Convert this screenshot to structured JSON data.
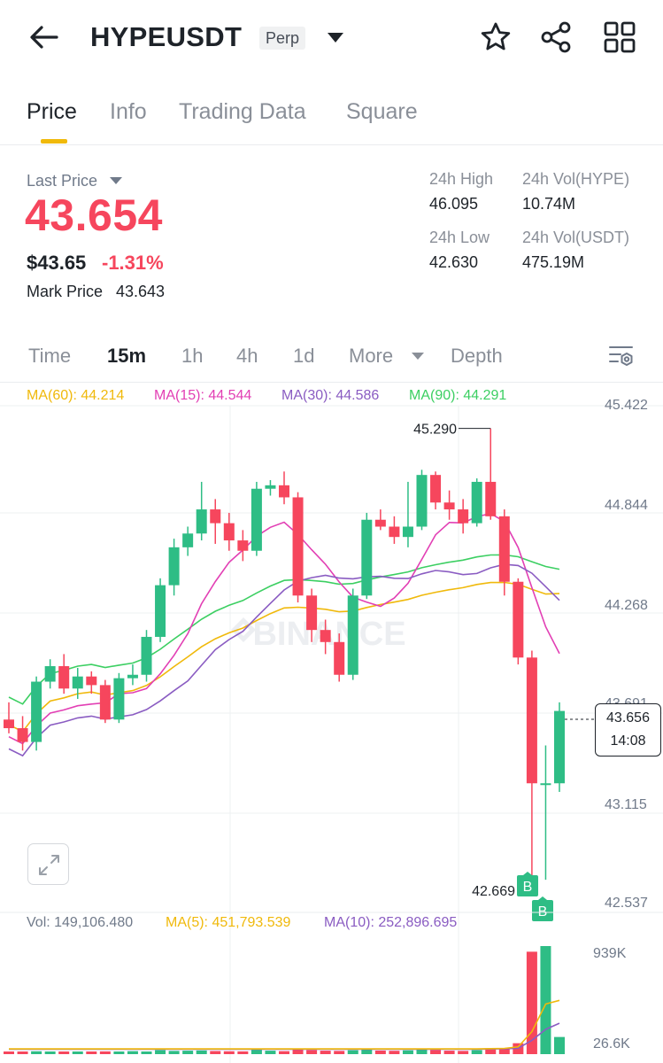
{
  "header": {
    "symbol": "HYPEUSDT",
    "contract_type": "Perp",
    "icons": [
      "back-arrow-icon",
      "star-icon",
      "share-icon",
      "grid-icon"
    ]
  },
  "tabs": [
    {
      "label": "Price",
      "active": true
    },
    {
      "label": "Info",
      "active": false
    },
    {
      "label": "Trading Data",
      "active": false
    },
    {
      "label": "Square",
      "active": false
    }
  ],
  "price": {
    "last_price_label": "Last Price",
    "last_price": "43.654",
    "usd_price": "$43.65",
    "change": "-1.31%",
    "mark_label": "Mark Price",
    "mark_price": "43.643"
  },
  "stats": {
    "high_label": "24h High",
    "high": "46.095",
    "low_label": "24h Low",
    "low": "42.630",
    "vol_base_label": "24h Vol(HYPE)",
    "vol_base": "10.74M",
    "vol_quote_label": "24h Vol(USDT)",
    "vol_quote": "475.19M"
  },
  "intervals": {
    "items": [
      "Time",
      "15m",
      "1h",
      "4h",
      "1d",
      "More",
      "Depth"
    ],
    "active": "15m"
  },
  "chart_data": {
    "type": "candlestick",
    "interval": "15m",
    "watermark": "BINANCE",
    "indicators": [
      {
        "label": "MA(60): 44.214",
        "color": "#f0b90b"
      },
      {
        "label": "MA(15): 44.544",
        "color": "#e23fb4"
      },
      {
        "label": "MA(30): 44.586",
        "color": "#8a5cc2"
      },
      {
        "label": "MA(90): 44.291",
        "color": "#3ccf62"
      }
    ],
    "y_axis": [
      "45.422",
      "44.844",
      "44.268",
      "43.691",
      "43.115",
      "42.537"
    ],
    "ylim": [
      42.537,
      45.422
    ],
    "high_annotation": "45.290",
    "low_annotation": "42.669",
    "current_price": "43.656",
    "countdown": "14:08",
    "buy_marker": "B",
    "candles": [
      {
        "o": 43.6,
        "h": 43.7,
        "l": 43.52,
        "c": 43.55
      },
      {
        "o": 43.55,
        "h": 43.62,
        "l": 43.42,
        "c": 43.47
      },
      {
        "o": 43.47,
        "h": 43.85,
        "l": 43.42,
        "c": 43.82
      },
      {
        "o": 43.82,
        "h": 43.95,
        "l": 43.78,
        "c": 43.91
      },
      {
        "o": 43.91,
        "h": 43.98,
        "l": 43.75,
        "c": 43.78
      },
      {
        "o": 43.78,
        "h": 43.9,
        "l": 43.72,
        "c": 43.85
      },
      {
        "o": 43.85,
        "h": 43.88,
        "l": 43.75,
        "c": 43.8
      },
      {
        "o": 43.8,
        "h": 43.83,
        "l": 43.58,
        "c": 43.6
      },
      {
        "o": 43.6,
        "h": 43.87,
        "l": 43.58,
        "c": 43.84
      },
      {
        "o": 43.84,
        "h": 43.92,
        "l": 43.8,
        "c": 43.86
      },
      {
        "o": 43.86,
        "h": 44.12,
        "l": 43.82,
        "c": 44.08
      },
      {
        "o": 44.08,
        "h": 44.42,
        "l": 44.05,
        "c": 44.38
      },
      {
        "o": 44.38,
        "h": 44.65,
        "l": 44.32,
        "c": 44.6
      },
      {
        "o": 44.6,
        "h": 44.72,
        "l": 44.55,
        "c": 44.68
      },
      {
        "o": 44.68,
        "h": 44.98,
        "l": 44.64,
        "c": 44.82
      },
      {
        "o": 44.82,
        "h": 44.88,
        "l": 44.62,
        "c": 44.74
      },
      {
        "o": 44.74,
        "h": 44.8,
        "l": 44.58,
        "c": 44.64
      },
      {
        "o": 44.64,
        "h": 44.7,
        "l": 44.52,
        "c": 44.58
      },
      {
        "o": 44.58,
        "h": 44.98,
        "l": 44.55,
        "c": 44.94
      },
      {
        "o": 44.94,
        "h": 44.99,
        "l": 44.9,
        "c": 44.96
      },
      {
        "o": 44.96,
        "h": 45.04,
        "l": 44.85,
        "c": 44.89
      },
      {
        "o": 44.89,
        "h": 44.92,
        "l": 44.28,
        "c": 44.32
      },
      {
        "o": 44.32,
        "h": 44.36,
        "l": 44.05,
        "c": 44.12
      },
      {
        "o": 44.12,
        "h": 44.18,
        "l": 43.98,
        "c": 44.05
      },
      {
        "o": 44.05,
        "h": 44.1,
        "l": 43.82,
        "c": 43.86
      },
      {
        "o": 43.86,
        "h": 44.36,
        "l": 43.83,
        "c": 44.32
      },
      {
        "o": 44.32,
        "h": 44.8,
        "l": 44.3,
        "c": 44.76
      },
      {
        "o": 44.76,
        "h": 44.82,
        "l": 44.7,
        "c": 44.72
      },
      {
        "o": 44.72,
        "h": 44.78,
        "l": 44.62,
        "c": 44.66
      },
      {
        "o": 44.66,
        "h": 44.98,
        "l": 44.6,
        "c": 44.72
      },
      {
        "o": 44.72,
        "h": 45.05,
        "l": 44.7,
        "c": 45.02
      },
      {
        "o": 45.02,
        "h": 45.04,
        "l": 44.82,
        "c": 44.86
      },
      {
        "o": 44.86,
        "h": 44.93,
        "l": 44.76,
        "c": 44.82
      },
      {
        "o": 44.82,
        "h": 44.88,
        "l": 44.68,
        "c": 44.74
      },
      {
        "o": 44.74,
        "h": 45.0,
        "l": 44.72,
        "c": 44.98
      },
      {
        "o": 44.98,
        "h": 45.29,
        "l": 44.76,
        "c": 44.78
      },
      {
        "o": 44.78,
        "h": 44.82,
        "l": 44.32,
        "c": 44.4
      },
      {
        "o": 44.4,
        "h": 44.42,
        "l": 43.92,
        "c": 43.96
      },
      {
        "o": 43.96,
        "h": 44.0,
        "l": 42.69,
        "c": 43.23
      },
      {
        "o": 43.23,
        "h": 43.45,
        "l": 42.67,
        "c": 43.23
      },
      {
        "o": 43.23,
        "h": 43.7,
        "l": 43.18,
        "c": 43.65
      }
    ],
    "volume": {
      "label": "Vol: 149,106.480",
      "ma5_label": "MA(5): 451,793.539",
      "ma10_label": "MA(10): 252,896.695",
      "y_axis": [
        "939K",
        "26.6K"
      ],
      "values": [
        22000,
        18000,
        25000,
        20000,
        23000,
        19000,
        21000,
        24000,
        20000,
        26000,
        22000,
        35000,
        28000,
        30000,
        32000,
        27000,
        25000,
        24000,
        38000,
        30000,
        26000,
        42000,
        36000,
        30000,
        28000,
        34000,
        40000,
        31000,
        29000,
        33000,
        41000,
        37000,
        30000,
        28000,
        35000,
        52000,
        48000,
        95000,
        890000,
        939000,
        149106
      ],
      "ma5": [
        30000,
        30000,
        30000,
        30000,
        30000,
        30000,
        30000,
        30000,
        30000,
        30000,
        30000,
        30000,
        30000,
        30000,
        30000,
        30000,
        30000,
        30000,
        30000,
        30000,
        30000,
        30000,
        30000,
        30000,
        30000,
        30000,
        30000,
        30000,
        30000,
        30000,
        30000,
        30000,
        30000,
        30000,
        30000,
        32000,
        35000,
        48000,
        180000,
        420000,
        451793
      ],
      "ma10": [
        28000,
        28000,
        28000,
        28000,
        28000,
        28000,
        28000,
        28000,
        28000,
        28000,
        28000,
        28000,
        28000,
        28000,
        28000,
        28000,
        28000,
        28000,
        28000,
        28000,
        28000,
        28000,
        28000,
        28000,
        28000,
        28000,
        28000,
        28000,
        28000,
        28000,
        28000,
        28000,
        28000,
        28000,
        28000,
        29000,
        31000,
        36000,
        105000,
        200000,
        252896
      ]
    }
  }
}
